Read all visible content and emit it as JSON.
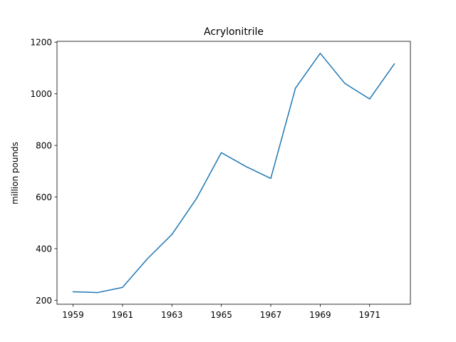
{
  "chart_data": {
    "type": "line",
    "title": "Acrylonitrile",
    "xlabel": "",
    "ylabel": "million pounds",
    "x": [
      1959,
      1960,
      1961,
      1962,
      1963,
      1964,
      1965,
      1966,
      1967,
      1968,
      1969,
      1970,
      1971,
      1972
    ],
    "series": [
      {
        "values": [
          233,
          230,
          250,
          360,
          455,
          595,
          772,
          718,
          672,
          1022,
          1157,
          1040,
          980,
          1116
        ]
      }
    ],
    "xticks": [
      1959,
      1961,
      1963,
      1965,
      1967,
      1969,
      1971
    ],
    "yticks": [
      200,
      400,
      600,
      800,
      1000,
      1200
    ],
    "xlim": [
      1958.35,
      1972.65
    ],
    "ylim": [
      184.65,
      1203.35
    ],
    "grid": false,
    "legend": "none",
    "colors": {
      "line": "#1f77b4",
      "axes": "#000000",
      "background": "#ffffff"
    }
  }
}
